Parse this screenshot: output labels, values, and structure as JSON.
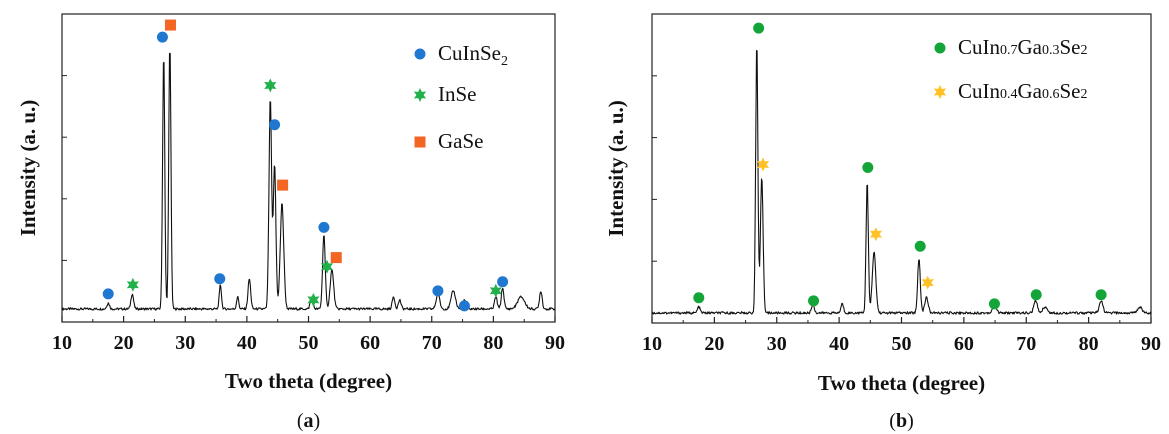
{
  "chart_data": [
    {
      "type": "line",
      "panel_label": "(a)",
      "xlabel": "Two theta (degree)",
      "ylabel": "Intensity (a. u.)",
      "xlim": [
        10,
        90
      ],
      "xticks": [
        "10",
        "20",
        "30",
        "40",
        "50",
        "60",
        "70",
        "80",
        "90"
      ],
      "grid": false,
      "legend_position": "top-right",
      "pattern": {
        "baseline": 0.03,
        "peaks": [
          {
            "x": 17.5,
            "h": 0.02,
            "w": 0.3
          },
          {
            "x": 21.4,
            "h": 0.05,
            "w": 0.3
          },
          {
            "x": 26.5,
            "h": 0.85,
            "w": 0.25
          },
          {
            "x": 27.5,
            "h": 0.88,
            "w": 0.25
          },
          {
            "x": 35.7,
            "h": 0.08,
            "w": 0.25
          },
          {
            "x": 38.5,
            "h": 0.04,
            "w": 0.25
          },
          {
            "x": 40.4,
            "h": 0.1,
            "w": 0.3
          },
          {
            "x": 43.8,
            "h": 0.7,
            "w": 0.3
          },
          {
            "x": 44.5,
            "h": 0.48,
            "w": 0.3
          },
          {
            "x": 45.7,
            "h": 0.35,
            "w": 0.4
          },
          {
            "x": 50.5,
            "h": 0.04,
            "w": 0.3
          },
          {
            "x": 52.5,
            "h": 0.25,
            "w": 0.3
          },
          {
            "x": 53.8,
            "h": 0.13,
            "w": 0.4
          },
          {
            "x": 63.8,
            "h": 0.04,
            "w": 0.3
          },
          {
            "x": 64.8,
            "h": 0.03,
            "w": 0.3
          },
          {
            "x": 71.0,
            "h": 0.05,
            "w": 0.4
          },
          {
            "x": 73.5,
            "h": 0.06,
            "w": 0.5
          },
          {
            "x": 75.3,
            "h": 0.03,
            "w": 0.3
          },
          {
            "x": 80.4,
            "h": 0.04,
            "w": 0.3
          },
          {
            "x": 81.5,
            "h": 0.07,
            "w": 0.3
          },
          {
            "x": 84.5,
            "h": 0.04,
            "w": 0.8
          },
          {
            "x": 87.7,
            "h": 0.06,
            "w": 0.3
          }
        ]
      },
      "markers": [
        {
          "series": 0,
          "x": 17.5,
          "y": 0.08
        },
        {
          "series": 0,
          "x": 26.3,
          "y": 0.93
        },
        {
          "series": 0,
          "x": 35.6,
          "y": 0.13
        },
        {
          "series": 0,
          "x": 44.5,
          "y": 0.64
        },
        {
          "series": 0,
          "x": 52.5,
          "y": 0.3
        },
        {
          "series": 0,
          "x": 71.0,
          "y": 0.09
        },
        {
          "series": 0,
          "x": 75.3,
          "y": 0.04
        },
        {
          "series": 0,
          "x": 81.5,
          "y": 0.12
        },
        {
          "series": 1,
          "x": 21.5,
          "y": 0.11
        },
        {
          "series": 1,
          "x": 43.8,
          "y": 0.77
        },
        {
          "series": 1,
          "x": 50.8,
          "y": 0.06
        },
        {
          "series": 1,
          "x": 53.0,
          "y": 0.17
        },
        {
          "series": 1,
          "x": 80.4,
          "y": 0.09
        },
        {
          "series": 2,
          "x": 27.6,
          "y": 0.97
        },
        {
          "series": 2,
          "x": 45.8,
          "y": 0.44
        },
        {
          "series": 2,
          "x": 54.5,
          "y": 0.2
        }
      ],
      "legend": [
        {
          "text": "CuInSe",
          "sub": "2",
          "color": "#1F77D0",
          "shape": "circle"
        },
        {
          "text": "InSe",
          "sub": "",
          "color": "#22B04B",
          "shape": "star"
        },
        {
          "text": "GaSe",
          "sub": "",
          "color": "#F26522",
          "shape": "square"
        }
      ]
    },
    {
      "type": "line",
      "panel_label": "(b)",
      "xlabel": "Two theta (degree)",
      "ylabel": "Intensity (a. u.)",
      "xlim": [
        10,
        90
      ],
      "xticks": [
        "10",
        "20",
        "30",
        "40",
        "50",
        "60",
        "70",
        "80",
        "90"
      ],
      "grid": false,
      "legend_position": "top-right",
      "pattern": {
        "baseline": 0.02,
        "peaks": [
          {
            "x": 17.5,
            "h": 0.02,
            "w": 0.3
          },
          {
            "x": 26.8,
            "h": 0.9,
            "w": 0.25
          },
          {
            "x": 27.6,
            "h": 0.45,
            "w": 0.3
          },
          {
            "x": 35.8,
            "h": 0.03,
            "w": 0.3
          },
          {
            "x": 40.5,
            "h": 0.03,
            "w": 0.3
          },
          {
            "x": 44.5,
            "h": 0.44,
            "w": 0.25
          },
          {
            "x": 45.6,
            "h": 0.2,
            "w": 0.4
          },
          {
            "x": 52.8,
            "h": 0.18,
            "w": 0.3
          },
          {
            "x": 54.0,
            "h": 0.05,
            "w": 0.4
          },
          {
            "x": 64.9,
            "h": 0.03,
            "w": 0.4
          },
          {
            "x": 71.5,
            "h": 0.04,
            "w": 0.4
          },
          {
            "x": 73.0,
            "h": 0.02,
            "w": 0.5
          },
          {
            "x": 82.0,
            "h": 0.04,
            "w": 0.4
          },
          {
            "x": 88.2,
            "h": 0.02,
            "w": 0.5
          }
        ]
      },
      "markers": [
        {
          "series": 0,
          "x": 17.5,
          "y": 0.07
        },
        {
          "series": 0,
          "x": 27.1,
          "y": 0.96
        },
        {
          "series": 0,
          "x": 35.9,
          "y": 0.06
        },
        {
          "series": 0,
          "x": 44.6,
          "y": 0.5
        },
        {
          "series": 0,
          "x": 53.0,
          "y": 0.24
        },
        {
          "series": 0,
          "x": 64.9,
          "y": 0.05
        },
        {
          "series": 0,
          "x": 71.6,
          "y": 0.08
        },
        {
          "series": 0,
          "x": 82.0,
          "y": 0.08
        },
        {
          "series": 1,
          "x": 27.8,
          "y": 0.51
        },
        {
          "series": 1,
          "x": 45.9,
          "y": 0.28
        },
        {
          "series": 1,
          "x": 54.2,
          "y": 0.12
        }
      ],
      "legend": [
        {
          "parts": [
            [
              "CuIn",
              false
            ],
            [
              "0.7",
              true
            ],
            [
              "Ga",
              false
            ],
            [
              "0.3",
              true
            ],
            [
              "Se",
              false
            ],
            [
              "2",
              true
            ]
          ],
          "color": "#13A538",
          "shape": "circle"
        },
        {
          "parts": [
            [
              "CuIn",
              false
            ],
            [
              "0.4",
              true
            ],
            [
              "Ga",
              false
            ],
            [
              "0.6",
              true
            ],
            [
              "Se",
              false
            ],
            [
              "2",
              true
            ]
          ],
          "color": "#FFC125",
          "shape": "star"
        }
      ]
    }
  ]
}
